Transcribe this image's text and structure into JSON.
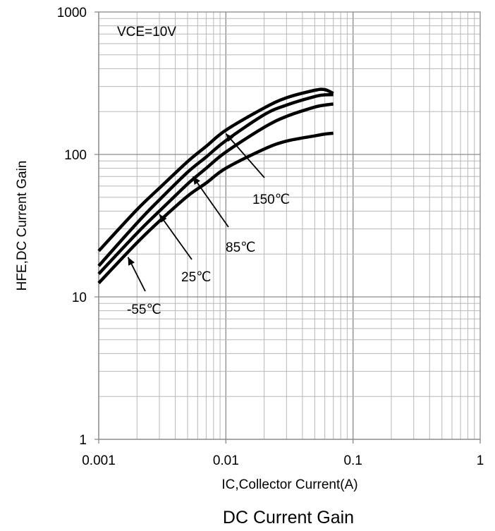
{
  "chart_data": {
    "type": "line",
    "caption": "DC Current Gain",
    "xlabel": "IC,Collector Current(A)",
    "ylabel": "HFE,DC Current Gain",
    "condition": "VCE=10V",
    "xscale": "log",
    "yscale": "log",
    "xlim": [
      0.001,
      1
    ],
    "ylim": [
      1,
      1000
    ],
    "grid": true,
    "x_ticks": [
      "0.001",
      "0.01",
      "0.1",
      "1"
    ],
    "y_ticks": [
      "1",
      "10",
      "100",
      "1000"
    ],
    "series": [
      {
        "name": "150℃",
        "x": [
          0.001,
          0.002,
          0.003,
          0.005,
          0.007,
          0.01,
          0.02,
          0.03,
          0.05,
          0.06,
          0.07
        ],
        "y": [
          21,
          41,
          58,
          89,
          114,
          148,
          212,
          250,
          282,
          285,
          268
        ]
      },
      {
        "name": "85℃",
        "x": [
          0.001,
          0.002,
          0.003,
          0.005,
          0.007,
          0.01,
          0.02,
          0.03,
          0.05,
          0.06,
          0.07
        ],
        "y": [
          16.5,
          33,
          48,
          75,
          96,
          125,
          190,
          222,
          255,
          262,
          263
        ]
      },
      {
        "name": "25℃",
        "x": [
          0.001,
          0.002,
          0.003,
          0.005,
          0.007,
          0.01,
          0.02,
          0.03,
          0.05,
          0.06,
          0.07
        ],
        "y": [
          14.5,
          28,
          40,
          62,
          80,
          104,
          155,
          185,
          215,
          222,
          226
        ]
      },
      {
        "name": "-55℃",
        "x": [
          0.001,
          0.002,
          0.003,
          0.005,
          0.007,
          0.01,
          0.02,
          0.03,
          0.05,
          0.06,
          0.07
        ],
        "y": [
          12.5,
          24,
          34,
          51,
          63,
          80,
          109,
          124,
          135,
          139,
          141
        ]
      }
    ],
    "annotations": [
      {
        "text": "150℃",
        "series": "150℃",
        "x": 0.01,
        "y": 140
      },
      {
        "text": "85℃",
        "series": "85℃",
        "x": 0.0055,
        "y": 70
      },
      {
        "text": "25℃",
        "series": "25℃",
        "x": 0.003,
        "y": 38
      },
      {
        "text": "-55℃",
        "series": "-55℃",
        "x": 0.0017,
        "y": 19
      }
    ]
  }
}
